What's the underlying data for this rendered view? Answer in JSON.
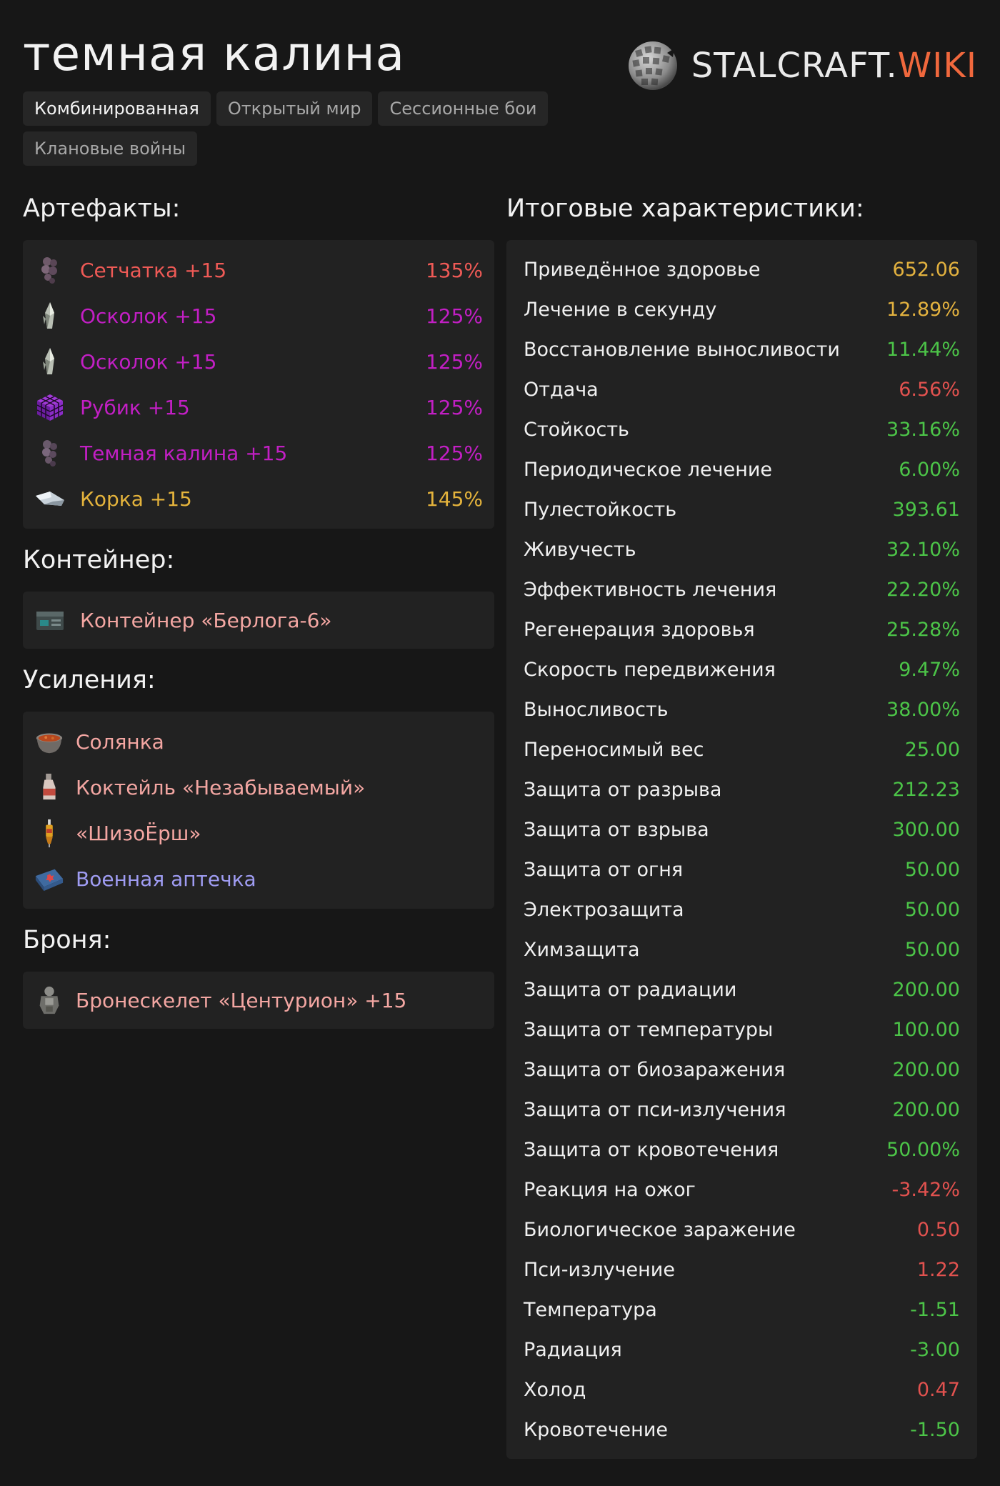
{
  "header": {
    "title": "темная калина",
    "logo_main": "STALCRAFT.",
    "logo_accent": "WIKI"
  },
  "tabs": [
    {
      "label": "Комбинированная",
      "active": true
    },
    {
      "label": "Открытый мир",
      "active": false
    },
    {
      "label": "Сессионные бои",
      "active": false
    },
    {
      "label": "Клановые войны",
      "active": false
    }
  ],
  "artifacts": {
    "title": "Артефакты:",
    "items": [
      {
        "name": "Сетчатка +15",
        "percent": "135%",
        "color": "#ef5a56",
        "icon": "setchatka-icon"
      },
      {
        "name": "Осколок +15",
        "percent": "125%",
        "color": "#c21fc4",
        "icon": "oskolok-icon"
      },
      {
        "name": "Осколок +15",
        "percent": "125%",
        "color": "#c21fc4",
        "icon": "oskolok-icon"
      },
      {
        "name": "Рубик +15",
        "percent": "125%",
        "color": "#c21fc4",
        "icon": "rubik-icon"
      },
      {
        "name": "Темная калина +15",
        "percent": "125%",
        "color": "#c21fc4",
        "icon": "kalina-icon"
      },
      {
        "name": "Корка +15",
        "percent": "145%",
        "color": "#e4b33c",
        "icon": "korka-icon"
      }
    ]
  },
  "container": {
    "title": "Контейнер:",
    "name": "Контейнер «Берлога-6»",
    "color": "#f3a6a2",
    "icon": "container-icon"
  },
  "boosts": {
    "title": "Усиления:",
    "items": [
      {
        "name": "Солянка",
        "color": "#f3a6a2",
        "icon": "soup-pot-icon"
      },
      {
        "name": "Коктейль «Незабываемый»",
        "color": "#f3a6a2",
        "icon": "bottle-icon"
      },
      {
        "name": "«ШизоЁрш»",
        "color": "#f3a6a2",
        "icon": "syringe-icon"
      },
      {
        "name": "Военная аптечка",
        "color": "#9f9cf2",
        "icon": "medkit-icon"
      }
    ]
  },
  "armor": {
    "title": "Броня:",
    "name": "Бронескелет «Центурион» +15",
    "color": "#f3a6a2",
    "icon": "armor-icon"
  },
  "stats": {
    "title": "Итоговые характеристики:",
    "rows": [
      {
        "label": "Приведённое здоровье",
        "value": "652.06",
        "color": "#e2b13f"
      },
      {
        "label": "Лечение в секунду",
        "value": "12.89%",
        "color": "#e2b13f"
      },
      {
        "label": "Восстановление выносливости",
        "value": "11.44%",
        "color": "#4cc448"
      },
      {
        "label": "Отдача",
        "value": "6.56%",
        "color": "#e1524f"
      },
      {
        "label": "Стойкость",
        "value": "33.16%",
        "color": "#4cc448"
      },
      {
        "label": "Периодическое лечение",
        "value": "6.00%",
        "color": "#4cc448"
      },
      {
        "label": "Пулестойкость",
        "value": "393.61",
        "color": "#4cc448"
      },
      {
        "label": "Живучесть",
        "value": "32.10%",
        "color": "#4cc448"
      },
      {
        "label": "Эффективность лечения",
        "value": "22.20%",
        "color": "#4cc448"
      },
      {
        "label": "Регенерация здоровья",
        "value": "25.28%",
        "color": "#4cc448"
      },
      {
        "label": "Скорость передвижения",
        "value": "9.47%",
        "color": "#4cc448"
      },
      {
        "label": "Выносливость",
        "value": "38.00%",
        "color": "#4cc448"
      },
      {
        "label": "Переносимый вес",
        "value": "25.00",
        "color": "#4cc448"
      },
      {
        "label": "Защита от разрыва",
        "value": "212.23",
        "color": "#4cc448"
      },
      {
        "label": "Защита от взрыва",
        "value": "300.00",
        "color": "#4cc448"
      },
      {
        "label": "Защита от огня",
        "value": "50.00",
        "color": "#4cc448"
      },
      {
        "label": "Электрозащита",
        "value": "50.00",
        "color": "#4cc448"
      },
      {
        "label": "Химзащита",
        "value": "50.00",
        "color": "#4cc448"
      },
      {
        "label": "Защита от радиации",
        "value": "200.00",
        "color": "#4cc448"
      },
      {
        "label": "Защита от температуры",
        "value": "100.00",
        "color": "#4cc448"
      },
      {
        "label": "Защита от биозаражения",
        "value": "200.00",
        "color": "#4cc448"
      },
      {
        "label": "Защита от пси-излучения",
        "value": "200.00",
        "color": "#4cc448"
      },
      {
        "label": "Защита от кровотечения",
        "value": "50.00%",
        "color": "#4cc448"
      },
      {
        "label": "Реакция на ожог",
        "value": "-3.42%",
        "color": "#e1524f"
      },
      {
        "label": "Биологическое заражение",
        "value": "0.50",
        "color": "#e1524f"
      },
      {
        "label": "Пси-излучение",
        "value": "1.22",
        "color": "#e1524f"
      },
      {
        "label": "Температура",
        "value": "-1.51",
        "color": "#4cc448"
      },
      {
        "label": "Радиация",
        "value": "-3.00",
        "color": "#4cc448"
      },
      {
        "label": "Холод",
        "value": "0.47",
        "color": "#e1524f"
      },
      {
        "label": "Кровотечение",
        "value": "-1.50",
        "color": "#4cc448"
      }
    ]
  }
}
